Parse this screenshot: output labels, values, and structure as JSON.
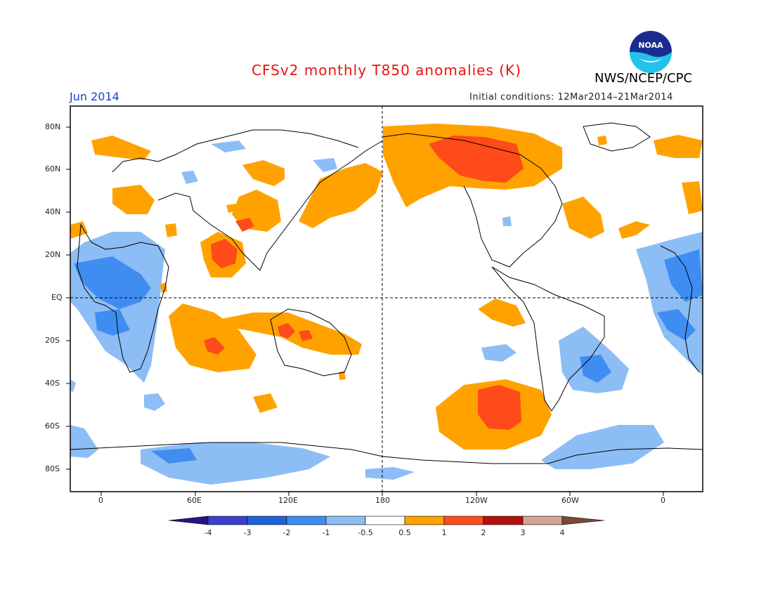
{
  "header": {
    "title": "CFSv2 monthly T850 anomalies (K)",
    "agency": "NWS/NCEP/CPC",
    "logo_text": "NOAA",
    "month": "Jun 2014",
    "initial_conditions": "Initial conditions: 12Mar2014–21Mar2014"
  },
  "axes": {
    "lat_labels": [
      "80N",
      "60N",
      "40N",
      "20N",
      "EQ",
      "20S",
      "40S",
      "60S",
      "80S"
    ],
    "lon_labels": [
      "0",
      "60E",
      "120E",
      "180",
      "120W",
      "60W",
      "0"
    ]
  },
  "colorbar": {
    "labels": [
      "-4",
      "-3",
      "-2",
      "-1",
      "-0.5",
      "0.5",
      "1",
      "2",
      "3",
      "4"
    ],
    "colors": [
      "#2a1282",
      "#3c3fcc",
      "#1e62d9",
      "#3f8df0",
      "#8dbdf5",
      "#ffffff",
      "#ffa200",
      "#ff4a1a",
      "#b3110f",
      "#d2a695",
      "#7a4a35"
    ]
  },
  "colors": {
    "warm1": "#ffa200",
    "warm2": "#ff4a1a",
    "cool1": "#8dbdf5",
    "cool2": "#3f8df0",
    "title": "#e8140b",
    "month": "#1a3fd6"
  }
}
